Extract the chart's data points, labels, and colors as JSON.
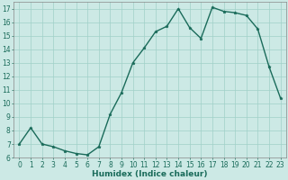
{
  "x": [
    0,
    1,
    2,
    3,
    4,
    5,
    6,
    7,
    8,
    9,
    10,
    11,
    12,
    13,
    14,
    15,
    16,
    17,
    18,
    19,
    20,
    21,
    22,
    23
  ],
  "y": [
    7.0,
    8.2,
    7.0,
    6.8,
    6.5,
    6.3,
    6.2,
    6.8,
    9.2,
    10.8,
    13.0,
    14.1,
    15.3,
    15.7,
    17.0,
    15.6,
    14.8,
    17.1,
    16.8,
    16.7,
    16.5,
    15.5,
    12.7,
    10.4
  ],
  "line_color": "#1a6b5a",
  "marker": "*",
  "marker_size": 2.5,
  "background_color": "#cce9e5",
  "grid_color": "#a0d0c8",
  "xlabel": "Humidex (Indice chaleur)",
  "xlim": [
    -0.5,
    23.5
  ],
  "ylim": [
    6,
    17.5
  ],
  "yticks": [
    6,
    7,
    8,
    9,
    10,
    11,
    12,
    13,
    14,
    15,
    16,
    17
  ],
  "xticks": [
    0,
    1,
    2,
    3,
    4,
    5,
    6,
    7,
    8,
    9,
    10,
    11,
    12,
    13,
    14,
    15,
    16,
    17,
    18,
    19,
    20,
    21,
    22,
    23
  ],
  "tick_fontsize": 5.5,
  "xlabel_fontsize": 6.5,
  "line_width": 1.0
}
